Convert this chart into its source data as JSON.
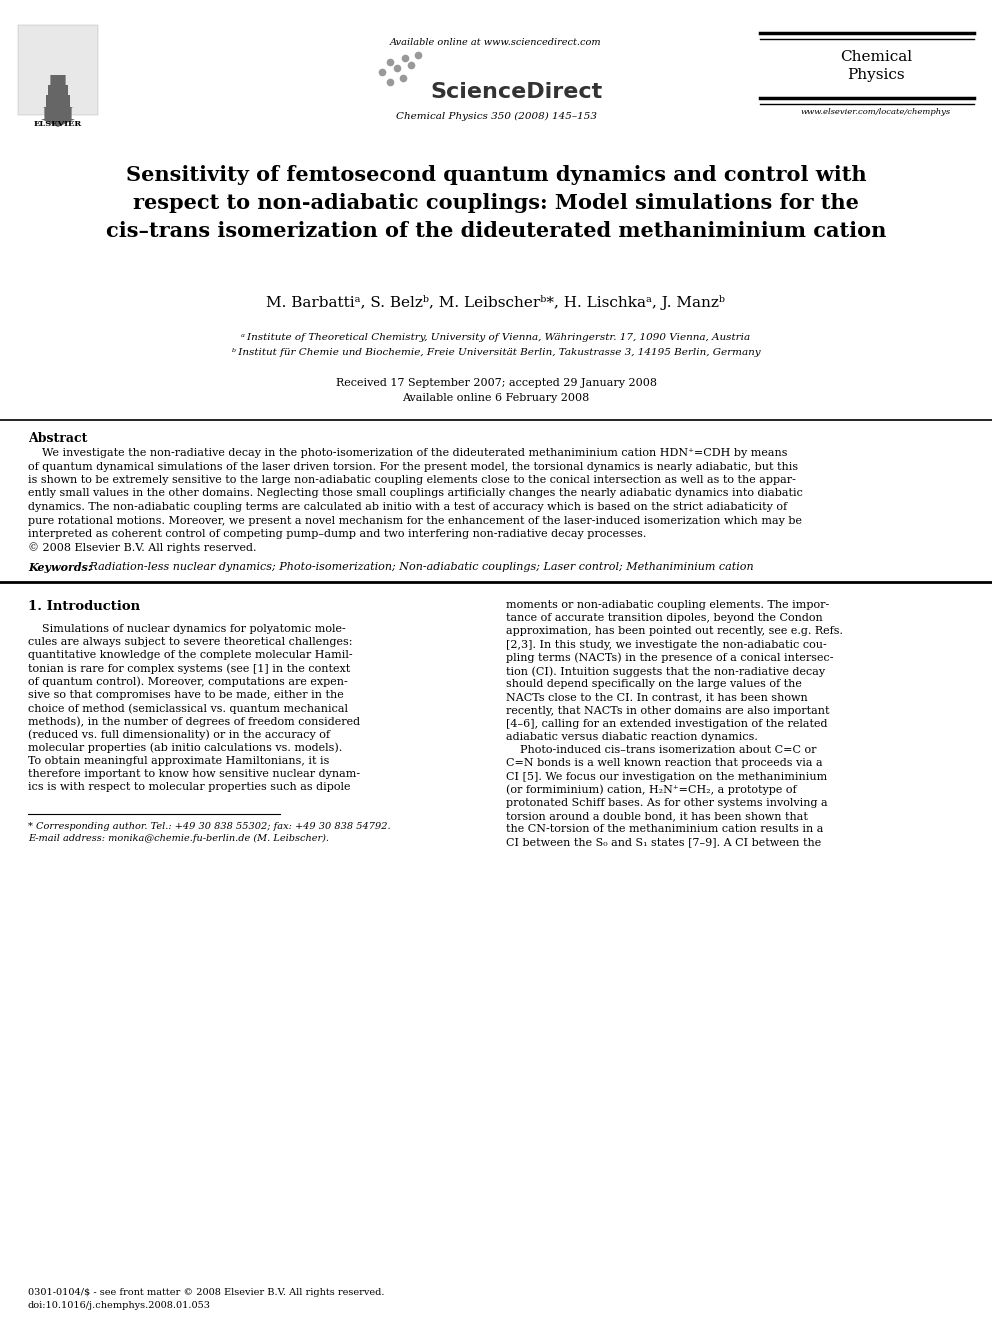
{
  "bg_color": "#ffffff",
  "page_width": 9.92,
  "page_height": 13.23,
  "dpi": 100,
  "header_available_online": "Available online at www.sciencedirect.com",
  "header_journal_info": "Chemical Physics 350 (2008) 145–153",
  "header_website": "www.elsevier.com/locate/chemphys",
  "header_chemical": "Chemical",
  "header_physics": "Physics",
  "title_line1": "Sensitivity of femtosecond quantum dynamics and control with",
  "title_line2": "respect to non-adiabatic couplings: Model simulations for the",
  "title_line3": "cis–trans isomerization of the dideuterated methaniminium cation",
  "authors": "M. Barbattiᵃ, S. Belzᵇ, M. Leibscherᵇ*, H. Lischkaᵃ, J. Manzᵇ",
  "affil_a": "ᵃ Institute of Theoretical Chemistry, University of Vienna, Währingerstr. 17, 1090 Vienna, Austria",
  "affil_b": "ᵇ Institut für Chemie und Biochemie, Freie Universität Berlin, Takustrasse 3, 14195 Berlin, Germany",
  "received": "Received 17 September 2007; accepted 29 January 2008",
  "available_online2": "Available online 6 February 2008",
  "abstract_title": "Abstract",
  "abstract_indent": "    We investigate the non-radiative decay in the photo-isomerization of the dideuterated methaniminium cation HDN⁺=CDH by means",
  "abstract_line2": "of quantum dynamical simulations of the laser driven torsion. For the present model, the torsional dynamics is nearly adiabatic, but this",
  "abstract_line3": "is shown to be extremely sensitive to the large non-adiabatic coupling elements close to the conical intersection as well as to the appar-",
  "abstract_line4": "ently small values in the other domains. Neglecting those small couplings artificially changes the nearly adiabatic dynamics into diabatic",
  "abstract_line5": "dynamics. The non-adiabatic coupling terms are calculated ab initio with a test of accuracy which is based on the strict adiabaticity of",
  "abstract_line6": "pure rotational motions. Moreover, we present a novel mechanism for the enhancement of the laser-induced isomerization which may be",
  "abstract_line7": "interpreted as coherent control of competing pump–dump and two interfering non-radiative decay processes.",
  "abstract_copyright": "© 2008 Elsevier B.V. All rights reserved.",
  "keywords_label": "Keywords: ",
  "keywords": " Radiation-less nuclear dynamics; Photo-isomerization; Non-adiabatic couplings; Laser control; Methaniminium cation",
  "section1_title": "1. Introduction",
  "col1_lines": [
    "    Simulations of nuclear dynamics for polyatomic mole-",
    "cules are always subject to severe theoretical challenges:",
    "quantitative knowledge of the complete molecular Hamil-",
    "tonian is rare for complex systems (see [1] in the context",
    "of quantum control). Moreover, computations are expen-",
    "sive so that compromises have to be made, either in the",
    "choice of method (semiclassical vs. quantum mechanical",
    "methods), in the number of degrees of freedom considered",
    "(reduced vs. full dimensionality) or in the accuracy of",
    "molecular properties (ab initio calculations vs. models).",
    "To obtain meaningful approximate Hamiltonians, it is",
    "therefore important to know how sensitive nuclear dynam-",
    "ics is with respect to molecular properties such as dipole"
  ],
  "col2_lines": [
    "moments or non-adiabatic coupling elements. The impor-",
    "tance of accurate transition dipoles, beyond the Condon",
    "approximation, has been pointed out recently, see e.g. Refs.",
    "[2,3]. In this study, we investigate the non-adiabatic cou-",
    "pling terms (NACTs) in the presence of a conical intersec-",
    "tion (CI). Intuition suggests that the non-radiative decay",
    "should depend specifically on the large values of the",
    "NACTs close to the CI. In contrast, it has been shown",
    "recently, that NACTs in other domains are also important",
    "[4–6], calling for an extended investigation of the related",
    "adiabatic versus diabatic reaction dynamics.",
    "    Photo-induced cis–trans isomerization about C=C or",
    "C=N bonds is a well known reaction that proceeds via a",
    "CI [5]. We focus our investigation on the methaniminium",
    "(or formiminium) cation, H₂N⁺=CH₂, a prototype of",
    "protonated Schiff bases. As for other systems involving a",
    "torsion around a double bond, it has been shown that",
    "the CN-torsion of the methaniminium cation results in a",
    "CI between the S₀ and S₁ states [7–9]. A CI between the"
  ],
  "footnote_star": "* Corresponding author. Tel.: +49 30 838 55302; fax: +49 30 838 54792.",
  "footnote_email": "E-mail address: monika@chemie.fu-berlin.de (M. Leibscher).",
  "copyright_footer1": "0301-0104/$ - see front matter © 2008 Elsevier B.V. All rights reserved.",
  "copyright_footer2": "doi:10.1016/j.chemphys.2008.01.053"
}
